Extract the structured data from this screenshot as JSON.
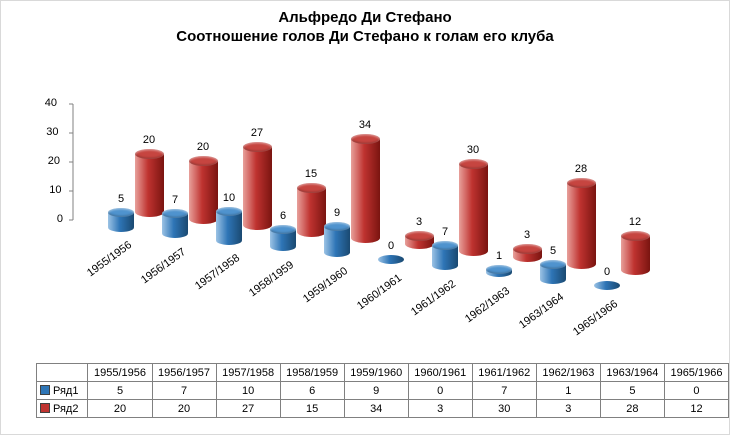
{
  "title": {
    "line1": "Альфредо Ди Стефано",
    "line2": "Соотношение голов Ди Стефано к голам его клуба"
  },
  "chart_data": {
    "type": "bar",
    "subtype": "3d-cylinder",
    "title": "Альфредо Ди Стефано — Соотношение голов Ди Стефано к голам его клуба",
    "categories": [
      "1955/1956",
      "1956/1957",
      "1957/1958",
      "1958/1959",
      "1959/1960",
      "1960/1961",
      "1961/1962",
      "1962/1963",
      "1963/1964",
      "1965/1966"
    ],
    "series": [
      {
        "name": "Ряд1",
        "color": "#2e75b6",
        "color_light": "#9cc3e5",
        "color_dark": "#1a4971",
        "top_color": "#4f93ce",
        "values": [
          5,
          7,
          10,
          6,
          9,
          0,
          7,
          1,
          5,
          0
        ]
      },
      {
        "name": "Ряд2",
        "color": "#bf3330",
        "color_light": "#e8a09b",
        "color_dark": "#7a1410",
        "top_color": "#c64540",
        "values": [
          20,
          20,
          27,
          15,
          34,
          3,
          30,
          3,
          28,
          12
        ]
      }
    ],
    "ylim": [
      0,
      40
    ],
    "yticks": [
      0,
      10,
      20,
      30,
      40
    ],
    "grid": false,
    "data_labels": true,
    "legend_position": "table-rows",
    "axis_color": "#808080"
  }
}
